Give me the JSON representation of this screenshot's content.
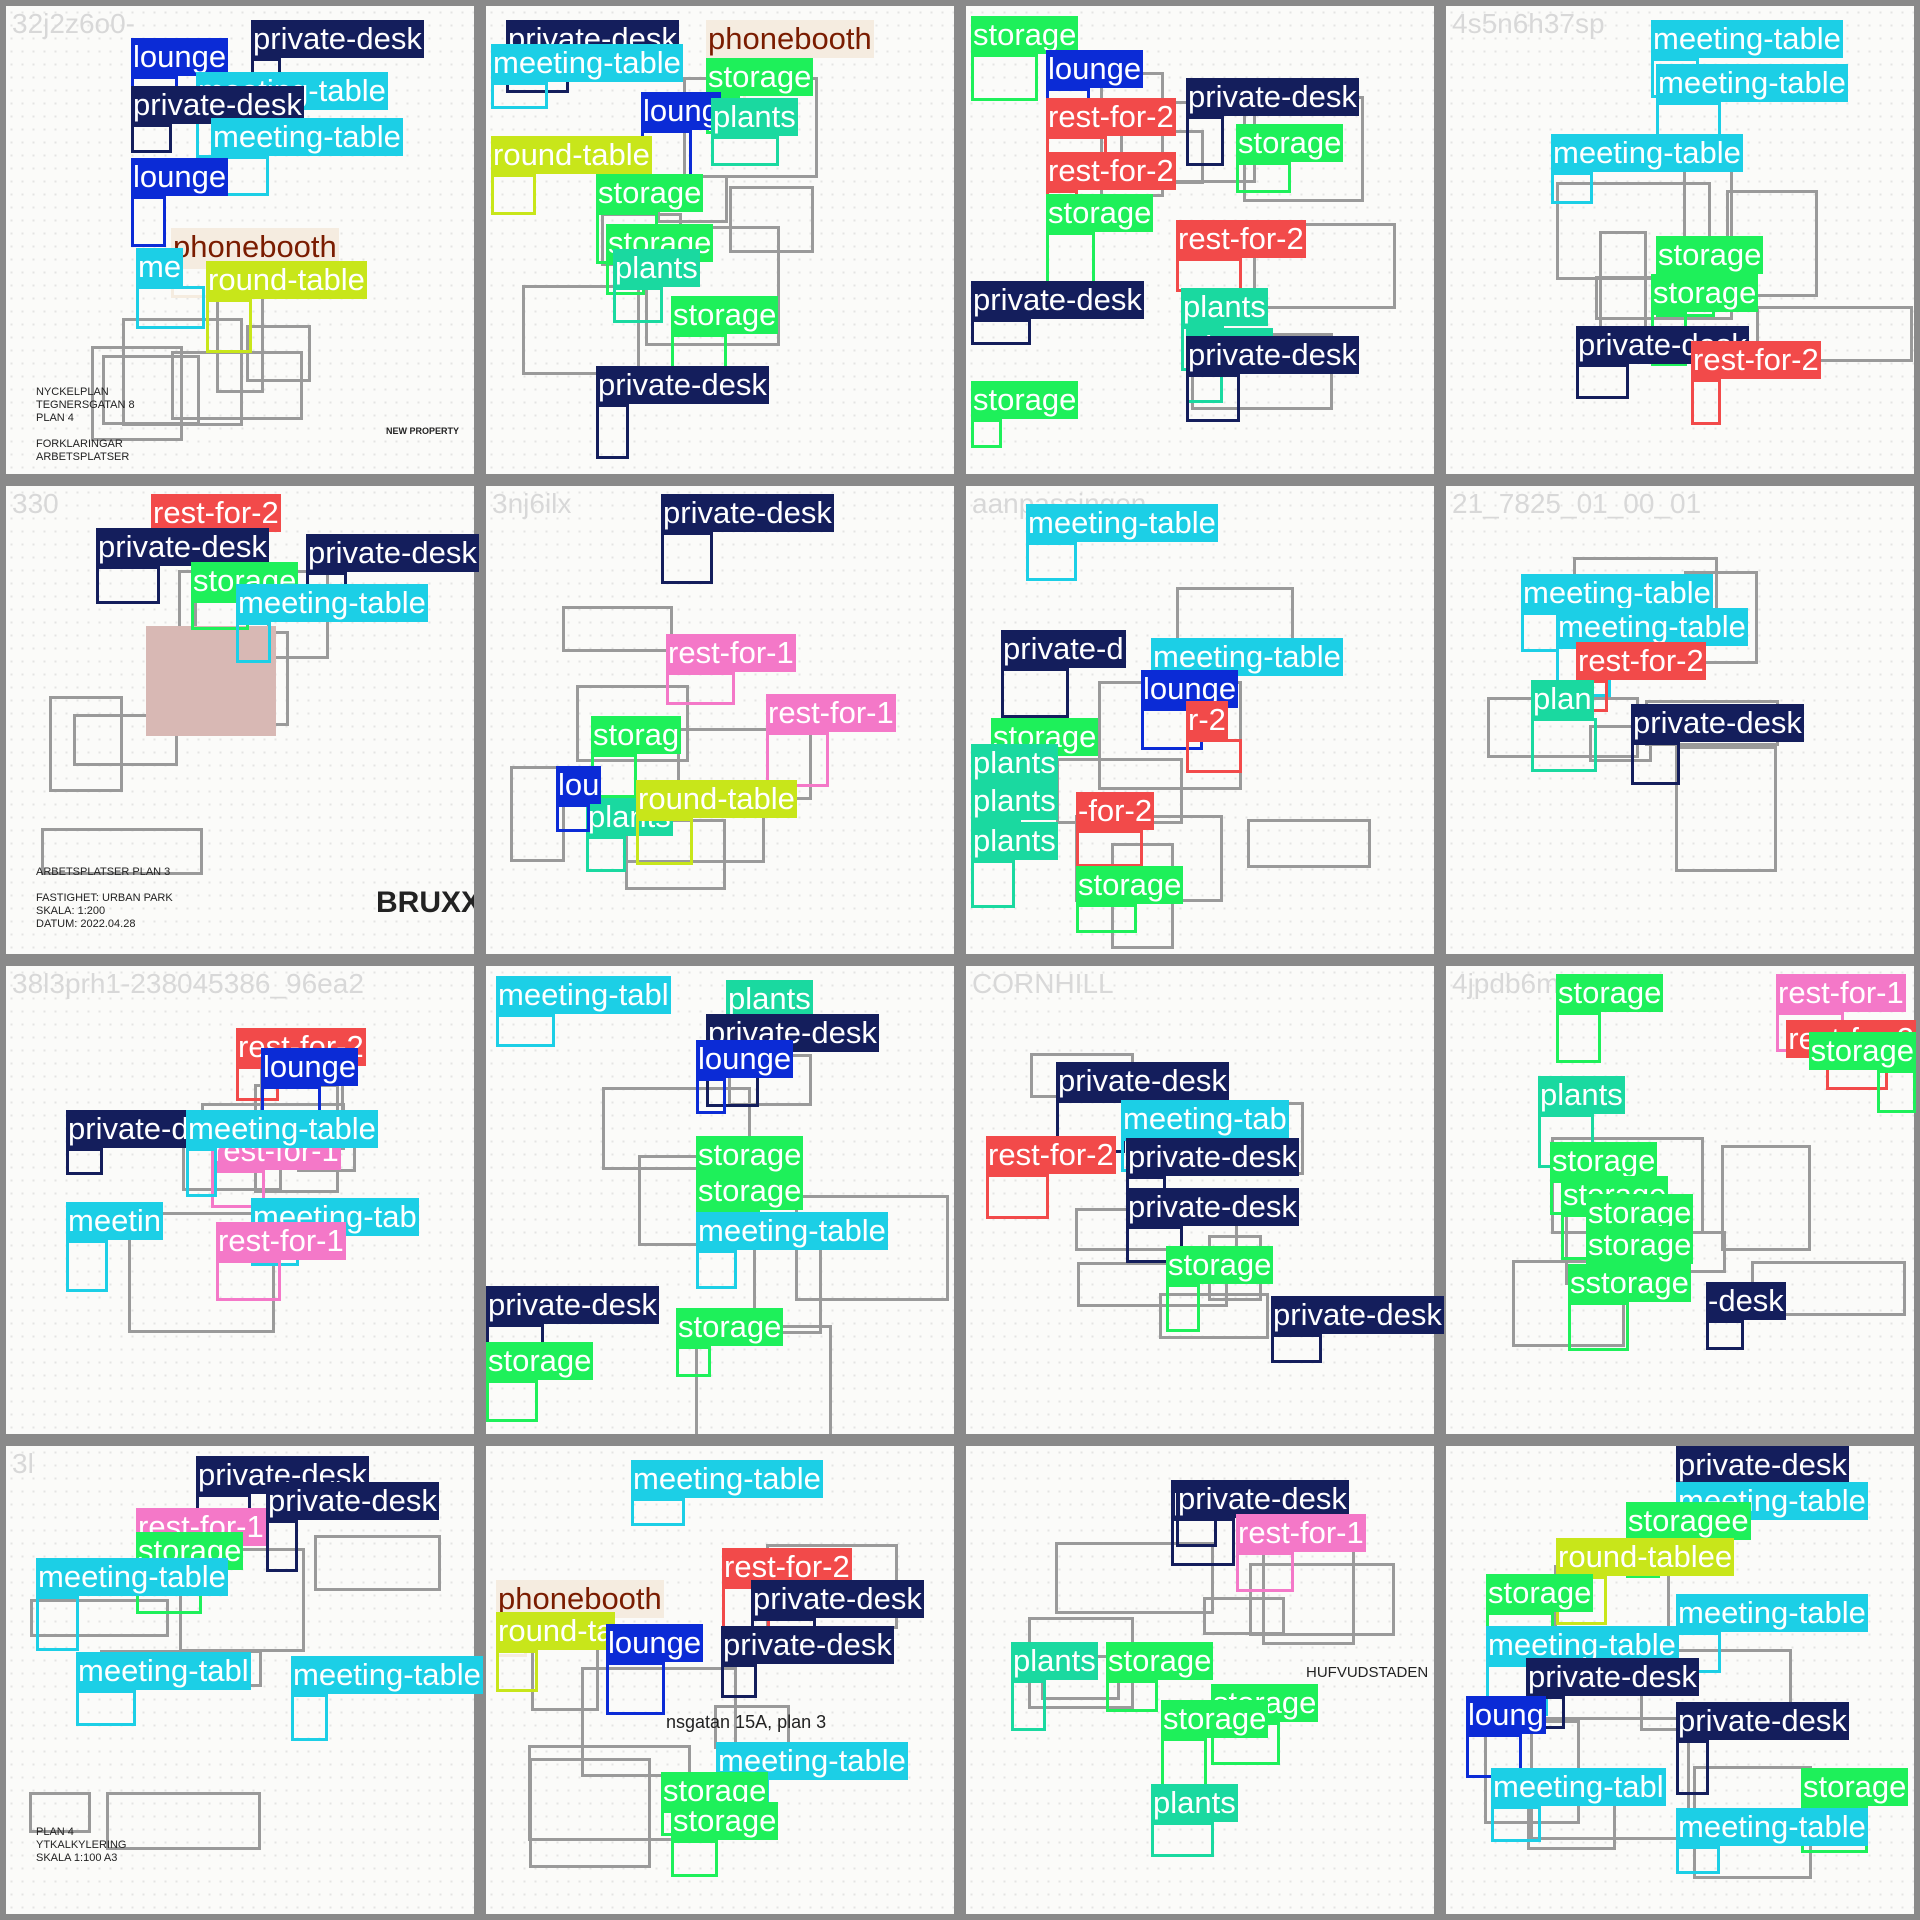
{
  "colors": {
    "private-desk": "#141e5c",
    "meeting-table": "#1ccfe6",
    "storage": "#1ef05a",
    "plants": "#1ad9a0",
    "lounge": "#0b2bd6",
    "rest-for-2": "#f24a4a",
    "rest-for-1": "#f478c8",
    "round-table": "#c8e61a",
    "phonebooth": "#f5ece0"
  },
  "class_labels": {
    "private_desk": "private-desk",
    "meeting_table": "meeting-table",
    "storage": "storage",
    "plants": "plants",
    "lounge": "lounge",
    "rest_for_2": "rest-for-2",
    "rest_for_1": "rest-for-1",
    "round_table": "round-table",
    "phonebooth": "phonebooth"
  },
  "tiles": [
    {
      "title": "32j2z6o0-",
      "footer": "NYCKELPLAN\nTEGNERSGATAN 8\nPLAN 4\n\nFORKLARINGAR\nARBETSPLATSER",
      "logo": "NEW PROPERTY"
    },
    {
      "title": "",
      "footer": "",
      "logo": ""
    },
    {
      "title": "",
      "footer": "",
      "logo": ""
    },
    {
      "title": "4s5n6h37sp",
      "footer": "",
      "logo": ""
    },
    {
      "title": "330",
      "footer": "ARBETSPLATSER PLAN 3\n\nFASTIGHET: URBAN PARK\nSKALA: 1:200\nDATUM: 2022.04.28",
      "logo": "BRUXX"
    },
    {
      "title": "3nj6ilx",
      "footer": "",
      "logo": ""
    },
    {
      "title": "aanpassingen",
      "footer": "",
      "logo": ""
    },
    {
      "title": "21_7825_01_00_01",
      "footer": "",
      "logo": ""
    },
    {
      "title": "38l3prh1-238045386_96ea2",
      "footer": "",
      "logo": ""
    },
    {
      "title": "",
      "footer": "",
      "logo": ""
    },
    {
      "title": "CORNHILL",
      "footer": "",
      "logo": ""
    },
    {
      "title": "4jpdb6m",
      "footer": "",
      "logo": ""
    },
    {
      "title": "3l",
      "footer": "PLAN 4\nYTKALKYLERING\nSKALA 1:100 A3",
      "logo": ""
    },
    {
      "title": "",
      "footer": "nsgatan 15A, plan 3",
      "logo": ""
    },
    {
      "title": "",
      "footer": "HUFVUDSTADEN",
      "logo": ""
    },
    {
      "title": "",
      "footer": "",
      "logo": ""
    }
  ],
  "labels": [
    {
      "tile": 0,
      "cls": "private_desk",
      "text": "private-desk"
    },
    {
      "tile": 0,
      "cls": "lounge",
      "text": "lounge"
    },
    {
      "tile": 0,
      "cls": "meeting_table",
      "text": "meeting-table"
    },
    {
      "tile": 0,
      "cls": "private_desk",
      "text": "private-desk"
    },
    {
      "tile": 0,
      "cls": "meeting_table",
      "text": "meeting-table"
    },
    {
      "tile": 0,
      "cls": "lounge",
      "text": "lounge"
    },
    {
      "tile": 0,
      "cls": "phonebooth",
      "text": "phonebooth"
    },
    {
      "tile": 0,
      "cls": "meeting_table",
      "text": "me"
    },
    {
      "tile": 0,
      "cls": "round_table",
      "text": "round-table"
    },
    {
      "tile": 1,
      "cls": "private_desk",
      "text": "private-desk"
    },
    {
      "tile": 1,
      "cls": "phonebooth",
      "text": "phonebooth"
    },
    {
      "tile": 1,
      "cls": "meeting_table",
      "text": "meeting-table"
    },
    {
      "tile": 1,
      "cls": "storage",
      "text": "storage"
    },
    {
      "tile": 1,
      "cls": "lounge",
      "text": "loung"
    },
    {
      "tile": 1,
      "cls": "plants",
      "text": "plants"
    },
    {
      "tile": 1,
      "cls": "round_table",
      "text": "round-table"
    },
    {
      "tile": 1,
      "cls": "storage",
      "text": "storage"
    },
    {
      "tile": 1,
      "cls": "storage",
      "text": "storage"
    },
    {
      "tile": 1,
      "cls": "storage",
      "text": "storage"
    },
    {
      "tile": 1,
      "cls": "private_desk",
      "text": "private-desk"
    },
    {
      "tile": 1,
      "cls": "plants",
      "text": "plants"
    },
    {
      "tile": 2,
      "cls": "storage",
      "text": "storage"
    },
    {
      "tile": 2,
      "cls": "lounge",
      "text": "lounge"
    },
    {
      "tile": 2,
      "cls": "rest_for_2",
      "text": "rest-for-2"
    },
    {
      "tile": 2,
      "cls": "private_desk",
      "text": "private-desk"
    },
    {
      "tile": 2,
      "cls": "storage",
      "text": "storage"
    },
    {
      "tile": 2,
      "cls": "rest_for_2",
      "text": "rest-for-2"
    },
    {
      "tile": 2,
      "cls": "storage",
      "text": "storage"
    },
    {
      "tile": 2,
      "cls": "rest_for_2",
      "text": "rest-for-2"
    },
    {
      "tile": 2,
      "cls": "plants",
      "text": "plants"
    },
    {
      "tile": 2,
      "cls": "private_desk",
      "text": "private-desk"
    },
    {
      "tile": 2,
      "cls": "plants",
      "text": "plants"
    },
    {
      "tile": 2,
      "cls": "private_desk",
      "text": "private-desk"
    },
    {
      "tile": 2,
      "cls": "storage",
      "text": "storage"
    },
    {
      "tile": 3,
      "cls": "meeting_table",
      "text": "meeting-table"
    },
    {
      "tile": 3,
      "cls": "meeting_table",
      "text": "meeting-table"
    },
    {
      "tile": 3,
      "cls": "meeting_table",
      "text": "meeting-table"
    },
    {
      "tile": 3,
      "cls": "storage",
      "text": "storage"
    },
    {
      "tile": 3,
      "cls": "storage",
      "text": "storage"
    },
    {
      "tile": 3,
      "cls": "private_desk",
      "text": "private-desk"
    },
    {
      "tile": 3,
      "cls": "rest_for_2",
      "text": "rest-for-2"
    },
    {
      "tile": 4,
      "cls": "rest_for_2",
      "text": "rest-for-2"
    },
    {
      "tile": 4,
      "cls": "private_desk",
      "text": "private-desk"
    },
    {
      "tile": 4,
      "cls": "private_desk",
      "text": "private-desk"
    },
    {
      "tile": 4,
      "cls": "storage",
      "text": "storage"
    },
    {
      "tile": 4,
      "cls": "meeting_table",
      "text": "meeting-table"
    },
    {
      "tile": 5,
      "cls": "private_desk",
      "text": "private-desk"
    },
    {
      "tile": 5,
      "cls": "rest_for_1",
      "text": "rest-for-1"
    },
    {
      "tile": 5,
      "cls": "storage",
      "text": "storag"
    },
    {
      "tile": 5,
      "cls": "rest_for_1",
      "text": "rest-for-1"
    },
    {
      "tile": 5,
      "cls": "plants",
      "text": "plants"
    },
    {
      "tile": 5,
      "cls": "round_table",
      "text": "round-table"
    },
    {
      "tile": 5,
      "cls": "lounge",
      "text": "lou"
    },
    {
      "tile": 6,
      "cls": "meeting_table",
      "text": "meeting-table"
    },
    {
      "tile": 6,
      "cls": "private_desk",
      "text": "private-d"
    },
    {
      "tile": 6,
      "cls": "meeting_table",
      "text": "meeting-table"
    },
    {
      "tile": 6,
      "cls": "lounge",
      "text": "lounge"
    },
    {
      "tile": 6,
      "cls": "storage",
      "text": "storage"
    },
    {
      "tile": 6,
      "cls": "rest_for_2",
      "text": "r-2"
    },
    {
      "tile": 6,
      "cls": "plants",
      "text": "plants"
    },
    {
      "tile": 6,
      "cls": "plants",
      "text": "plants"
    },
    {
      "tile": 6,
      "cls": "rest_for_2",
      "text": "-for-2"
    },
    {
      "tile": 6,
      "cls": "plants",
      "text": "plants"
    },
    {
      "tile": 6,
      "cls": "storage",
      "text": "storage"
    },
    {
      "tile": 7,
      "cls": "meeting_table",
      "text": "meeting-table"
    },
    {
      "tile": 7,
      "cls": "meeting_table",
      "text": "meeting-table"
    },
    {
      "tile": 7,
      "cls": "rest_for_2",
      "text": "rest-for-2"
    },
    {
      "tile": 7,
      "cls": "private_desk",
      "text": "private-desk"
    },
    {
      "tile": 7,
      "cls": "plants",
      "text": "plan"
    },
    {
      "tile": 8,
      "cls": "rest_for_2",
      "text": "rest-for-2"
    },
    {
      "tile": 8,
      "cls": "lounge",
      "text": "lounge"
    },
    {
      "tile": 8,
      "cls": "private_desk",
      "text": "private-d"
    },
    {
      "tile": 8,
      "cls": "rest_for_1",
      "text": "rest-for-1"
    },
    {
      "tile": 8,
      "cls": "meeting_table",
      "text": "meeting-table"
    },
    {
      "tile": 8,
      "cls": "meeting_table",
      "text": "meeting-tab"
    },
    {
      "tile": 8,
      "cls": "rest_for_1",
      "text": "rest-for-1"
    },
    {
      "tile": 8,
      "cls": "meeting_table",
      "text": "meetin"
    },
    {
      "tile": 9,
      "cls": "meeting_table",
      "text": "meeting-tabl"
    },
    {
      "tile": 9,
      "cls": "plants",
      "text": "plants"
    },
    {
      "tile": 9,
      "cls": "private_desk",
      "text": "private-desk"
    },
    {
      "tile": 9,
      "cls": "lounge",
      "text": "lounge"
    },
    {
      "tile": 9,
      "cls": "storage",
      "text": "storage"
    },
    {
      "tile": 9,
      "cls": "storage",
      "text": "storage"
    },
    {
      "tile": 9,
      "cls": "meeting_table",
      "text": "meeting-table"
    },
    {
      "tile": 9,
      "cls": "private_desk",
      "text": "private-desk"
    },
    {
      "tile": 9,
      "cls": "storage",
      "text": "storage"
    },
    {
      "tile": 9,
      "cls": "storage",
      "text": "storage"
    },
    {
      "tile": 10,
      "cls": "private_desk",
      "text": "private-desk"
    },
    {
      "tile": 10,
      "cls": "meeting_table",
      "text": "meeting-tab"
    },
    {
      "tile": 10,
      "cls": "rest_for_2",
      "text": "rest-for-2"
    },
    {
      "tile": 10,
      "cls": "private_desk",
      "text": "private-desk"
    },
    {
      "tile": 10,
      "cls": "private_desk",
      "text": "private-desk"
    },
    {
      "tile": 10,
      "cls": "storage",
      "text": "storage"
    },
    {
      "tile": 10,
      "cls": "private_desk",
      "text": "private-desk"
    },
    {
      "tile": 11,
      "cls": "rest_for_1",
      "text": "rest-for-1"
    },
    {
      "tile": 11,
      "cls": "storage",
      "text": "storage"
    },
    {
      "tile": 11,
      "cls": "rest_for_2",
      "text": "rest-for-2"
    },
    {
      "tile": 11,
      "cls": "storage",
      "text": "storage"
    },
    {
      "tile": 11,
      "cls": "plants",
      "text": "plants"
    },
    {
      "tile": 11,
      "cls": "storage",
      "text": "storage"
    },
    {
      "tile": 11,
      "cls": "storage",
      "text": "storage"
    },
    {
      "tile": 11,
      "cls": "storage",
      "text": "storage"
    },
    {
      "tile": 11,
      "cls": "storage",
      "text": "storage"
    },
    {
      "tile": 11,
      "cls": "storage",
      "text": "sstorage"
    },
    {
      "tile": 11,
      "cls": "private_desk",
      "text": "-desk"
    },
    {
      "tile": 12,
      "cls": "private_desk",
      "text": "private-desk"
    },
    {
      "tile": 12,
      "cls": "private_desk",
      "text": "private-desk"
    },
    {
      "tile": 12,
      "cls": "rest_for_1",
      "text": "rest-for-1"
    },
    {
      "tile": 12,
      "cls": "storage",
      "text": "storage"
    },
    {
      "tile": 12,
      "cls": "meeting_table",
      "text": "meeting-table"
    },
    {
      "tile": 12,
      "cls": "meeting_table",
      "text": "meeting-tabl"
    },
    {
      "tile": 12,
      "cls": "meeting_table",
      "text": "meeting-table"
    },
    {
      "tile": 13,
      "cls": "meeting_table",
      "text": "meeting-table"
    },
    {
      "tile": 13,
      "cls": "phonebooth",
      "text": "phonebooth"
    },
    {
      "tile": 13,
      "cls": "rest_for_2",
      "text": "rest-for-2"
    },
    {
      "tile": 13,
      "cls": "private_desk",
      "text": "private-desk"
    },
    {
      "tile": 13,
      "cls": "round_table",
      "text": "round-ta"
    },
    {
      "tile": 13,
      "cls": "lounge",
      "text": "lounge"
    },
    {
      "tile": 13,
      "cls": "private_desk",
      "text": "private-desk"
    },
    {
      "tile": 13,
      "cls": "meeting_table",
      "text": "meeting-table"
    },
    {
      "tile": 13,
      "cls": "storage",
      "text": "storage"
    },
    {
      "tile": 13,
      "cls": "storage",
      "text": "storage"
    },
    {
      "tile": 14,
      "cls": "private_desk",
      "text": "private-d"
    },
    {
      "tile": 14,
      "cls": "private_desk",
      "text": "private-desk"
    },
    {
      "tile": 14,
      "cls": "rest_for_1",
      "text": "rest-for-1"
    },
    {
      "tile": 14,
      "cls": "plants",
      "text": "plants"
    },
    {
      "tile": 14,
      "cls": "storage",
      "text": "storage"
    },
    {
      "tile": 14,
      "cls": "storage",
      "text": "storage"
    },
    {
      "tile": 14,
      "cls": "storage",
      "text": "storage"
    },
    {
      "tile": 14,
      "cls": "plants",
      "text": "plants"
    },
    {
      "tile": 15,
      "cls": "private_desk",
      "text": "private-desk"
    },
    {
      "tile": 15,
      "cls": "meeting_table",
      "text": "meeting-table"
    },
    {
      "tile": 15,
      "cls": "storage",
      "text": "storagee"
    },
    {
      "tile": 15,
      "cls": "round_table",
      "text": "round-tablee"
    },
    {
      "tile": 15,
      "cls": "storage",
      "text": "storage"
    },
    {
      "tile": 15,
      "cls": "meeting_table",
      "text": "meeting-table"
    },
    {
      "tile": 15,
      "cls": "meeting_table",
      "text": "meeting-table"
    },
    {
      "tile": 15,
      "cls": "private_desk",
      "text": "private-desk"
    },
    {
      "tile": 15,
      "cls": "lounge",
      "text": "loung"
    },
    {
      "tile": 15,
      "cls": "private_desk",
      "text": "private-desk"
    },
    {
      "tile": 15,
      "cls": "meeting_table",
      "text": "meeting-tabl"
    },
    {
      "tile": 15,
      "cls": "storage",
      "text": "storage"
    },
    {
      "tile": 15,
      "cls": "meeting_table",
      "text": "meeting-table"
    }
  ]
}
